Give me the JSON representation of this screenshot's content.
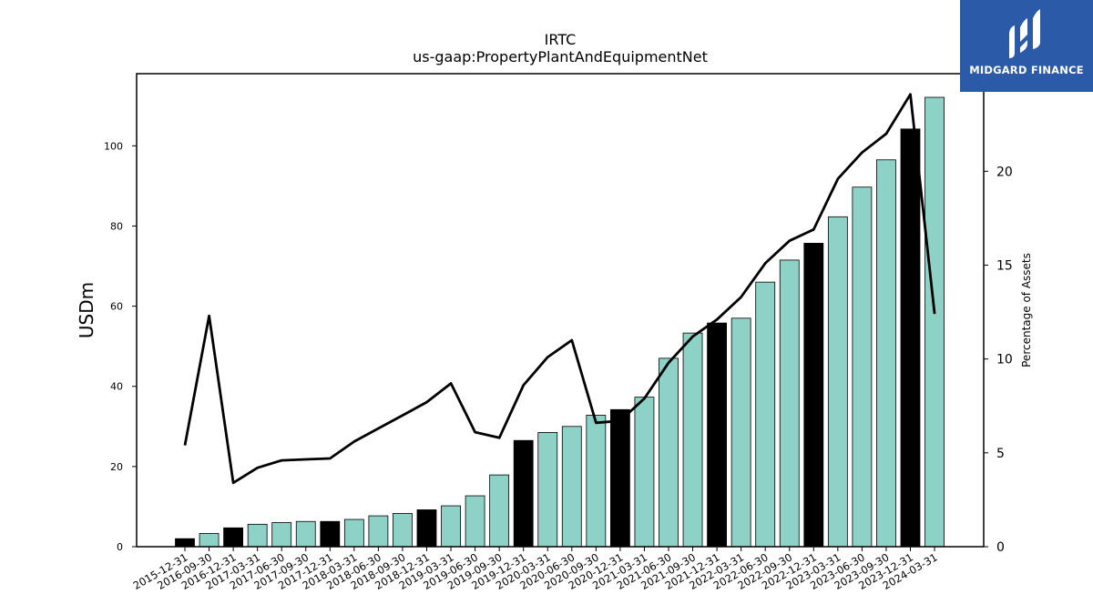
{
  "chart_data": {
    "type": "bar",
    "title": "IRTC",
    "subtitle": "us-gaap:PropertyPlantAndEquipmentNet",
    "ylabel": "USDm",
    "y2label": "Percentage of Assets",
    "ylim": [
      0,
      118
    ],
    "y2lim": [
      0,
      25.2
    ],
    "yticks": [
      0,
      20,
      40,
      60,
      80,
      100
    ],
    "y2ticks": [
      0,
      5,
      10,
      15,
      20
    ],
    "categories": [
      "2015-12-31",
      "2016-09-30",
      "2016-12-31",
      "2017-03-31",
      "2017-06-30",
      "2017-09-30",
      "2017-12-31",
      "2018-03-31",
      "2018-06-30",
      "2018-09-30",
      "2018-12-31",
      "2019-03-31",
      "2019-06-30",
      "2019-09-30",
      "2019-12-31",
      "2020-03-31",
      "2020-06-30",
      "2020-09-30",
      "2020-12-31",
      "2021-03-31",
      "2021-06-30",
      "2021-09-30",
      "2021-12-31",
      "2022-03-31",
      "2022-06-30",
      "2022-09-30",
      "2022-12-31",
      "2023-03-31",
      "2023-06-30",
      "2023-09-30",
      "2023-12-31",
      "2024-03-31"
    ],
    "series": [
      {
        "type": "bar",
        "axis": "left",
        "values": [
          2.0,
          3.3,
          4.7,
          5.6,
          6.0,
          6.3,
          6.3,
          6.8,
          7.7,
          8.3,
          9.2,
          10.2,
          12.7,
          17.9,
          26.5,
          28.5,
          30.0,
          32.8,
          34.2,
          37.3,
          47.0,
          53.3,
          55.8,
          57.0,
          66.0,
          71.5,
          75.7,
          82.3,
          89.7,
          96.5,
          104.2,
          112.1
        ],
        "annual_color": "#000000",
        "quarterly_color": "#8ed1c6",
        "annual_flags": [
          1,
          0,
          1,
          0,
          0,
          0,
          1,
          0,
          0,
          0,
          1,
          0,
          0,
          0,
          1,
          0,
          0,
          0,
          1,
          0,
          0,
          0,
          1,
          0,
          0,
          0,
          1,
          0,
          0,
          0,
          1,
          0
        ]
      },
      {
        "type": "line",
        "axis": "right",
        "color": "#000000",
        "values": [
          5.4,
          12.3,
          3.4,
          4.2,
          4.6,
          4.65,
          4.7,
          5.6,
          6.3,
          7.0,
          7.7,
          8.7,
          6.1,
          5.8,
          8.6,
          10.1,
          11.0,
          6.6,
          6.7,
          7.9,
          9.8,
          11.2,
          12.1,
          13.3,
          15.1,
          16.3,
          16.9,
          19.6,
          21.0,
          22.0,
          24.1,
          12.4
        ]
      }
    ],
    "grid": false
  },
  "logo": {
    "text": "MIDGARD FINANCE",
    "color": "#2b5aa8"
  }
}
